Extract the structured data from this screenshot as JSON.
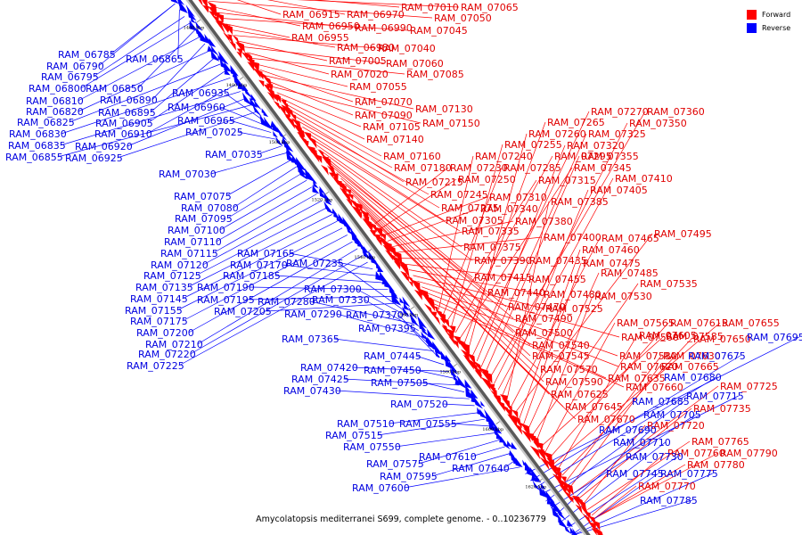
{
  "caption": "Amycolatopsis mediterranei S699, complete genome. - 0..10236779",
  "legend": {
    "forward": {
      "label": "Forward",
      "color": "#ff0000"
    },
    "reverse": {
      "label": "Reverse",
      "color": "#0000ff"
    }
  },
  "scale_ticks": [
    "1460 kbp",
    "1480 kbp",
    "1500 kbp",
    "1520 kbp",
    "1540 kbp",
    "1560 kbp",
    "1580 kbp",
    "1600 kbp",
    "1620 kbp"
  ],
  "forward_genes": [
    "RAM_06915",
    "RAM_06970",
    "RAM_07010",
    "RAM_07065",
    "RAM_07050",
    "RAM_06950",
    "RAM_06990",
    "RAM_07045",
    "RAM_06955",
    "RAM_06980",
    "RAM_07040",
    "RAM_07005",
    "RAM_07060",
    "RAM_07020",
    "RAM_07085",
    "RAM_07055",
    "RAM_07070",
    "RAM_07130",
    "RAM_07090",
    "RAM_07150",
    "RAM_07105",
    "RAM_07140",
    "RAM_07160",
    "RAM_07180",
    "RAM_07215",
    "RAM_07245",
    "RAM_07275",
    "RAM_07305",
    "RAM_07335",
    "RAM_07375",
    "RAM_07390",
    "RAM_07415",
    "RAM_07440",
    "RAM_07470",
    "RAM_07490",
    "RAM_07500",
    "RAM_07540",
    "RAM_07545",
    "RAM_07570",
    "RAM_07590",
    "RAM_07625",
    "RAM_07645",
    "RAM_07670",
    "RAM_07230",
    "RAM_07250",
    "RAM_07310",
    "RAM_07340",
    "RAM_07380",
    "RAM_07400",
    "RAM_07435",
    "RAM_07455",
    "RAM_07480",
    "RAM_07525",
    "RAM_07560",
    "RAM_07580",
    "RAM_07620",
    "RAM_07635",
    "RAM_07660",
    "RAM_07240",
    "RAM_07285",
    "RAM_07315",
    "RAM_07255",
    "RAM_07295",
    "RAM_07345",
    "RAM_07265",
    "RAM_07260",
    "RAM_07270",
    "RAM_07320",
    "RAM_07325",
    "RAM_07355",
    "RAM_07360",
    "RAM_07350",
    "RAM_07410",
    "RAM_07405",
    "RAM_07385",
    "RAM_07465",
    "RAM_07495",
    "RAM_07460",
    "RAM_07475",
    "RAM_07485",
    "RAM_07535",
    "RAM_07530",
    "RAM_07585",
    "RAM_07565",
    "RAM_07615",
    "RAM_07655",
    "RAM_07605",
    "RAM_07650",
    "RAM_07630",
    "RAM_07665",
    "RAM_07725",
    "RAM_07735",
    "RAM_07720",
    "RAM_07765",
    "RAM_07760",
    "RAM_07790",
    "RAM_07780",
    "RAM_07770"
  ],
  "reverse_genes": [
    "RAM_06785",
    "RAM_06790",
    "RAM_06865",
    "RAM_06795",
    "RAM_06800",
    "RAM_06850",
    "RAM_06810",
    "RAM_06890",
    "RAM_06820",
    "RAM_06895",
    "RAM_06825",
    "RAM_06905",
    "RAM_06830",
    "RAM_06910",
    "RAM_06835",
    "RAM_06920",
    "RAM_06855",
    "RAM_06925",
    "RAM_06935",
    "RAM_06960",
    "RAM_06965",
    "RAM_07025",
    "RAM_07035",
    "RAM_07030",
    "RAM_07075",
    "RAM_07080",
    "RAM_07095",
    "RAM_07100",
    "RAM_07110",
    "RAM_07115",
    "RAM_07120",
    "RAM_07125",
    "RAM_07135",
    "RAM_07145",
    "RAM_07155",
    "RAM_07175",
    "RAM_07200",
    "RAM_07210",
    "RAM_07220",
    "RAM_07225",
    "RAM_07165",
    "RAM_07170",
    "RAM_07185",
    "RAM_07190",
    "RAM_07195",
    "RAM_07205",
    "RAM_07235",
    "RAM_07300",
    "RAM_07280",
    "RAM_07330",
    "RAM_07290",
    "RAM_07370",
    "RAM_07365",
    "RAM_07395",
    "RAM_07445",
    "RAM_07420",
    "RAM_07450",
    "RAM_07425",
    "RAM_07505",
    "RAM_07430",
    "RAM_07520",
    "RAM_07510",
    "RAM_07515",
    "RAM_07555",
    "RAM_07550",
    "RAM_07575",
    "RAM_07610",
    "RAM_07595",
    "RAM_07640",
    "RAM_07600",
    "RAM_07695",
    "RAM_07675",
    "RAM_07680",
    "RAM_07715",
    "RAM_07685",
    "RAM_07705",
    "RAM_07690",
    "RAM_07710",
    "RAM_07730",
    "RAM_07745",
    "RAM_07775",
    "RAM_07785"
  ]
}
